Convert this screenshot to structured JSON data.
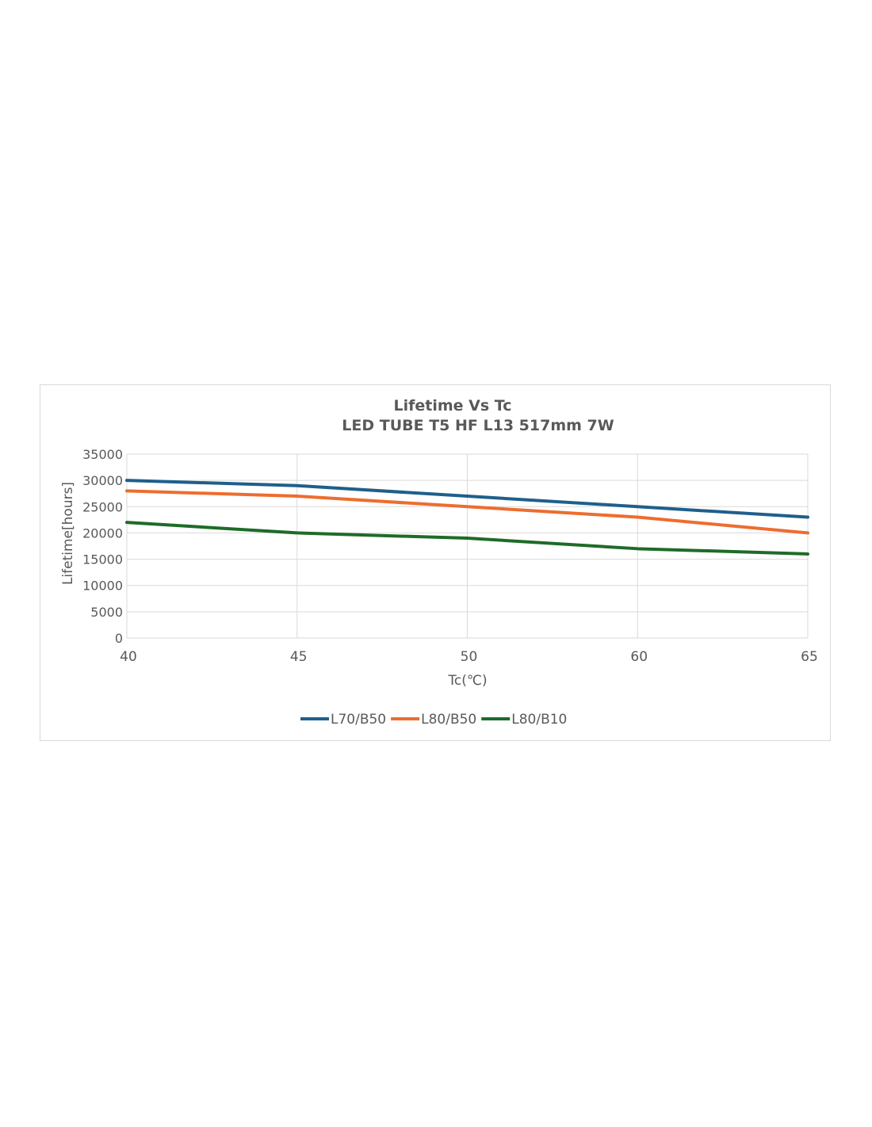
{
  "chart_data": {
    "type": "line",
    "title": "Lifetime Vs Tc",
    "subtitle": "LED TUBE T5 HF L13  517mm 7W",
    "xlabel": "Tc(℃)",
    "ylabel": "Lifetime[hours]",
    "categories": [
      "40",
      "45",
      "50",
      "60",
      "65"
    ],
    "ylim": [
      0,
      35000
    ],
    "yticks": [
      0,
      5000,
      10000,
      15000,
      20000,
      25000,
      30000,
      35000
    ],
    "grid": true,
    "legend_position": "bottom",
    "series": [
      {
        "name": "L70/B50",
        "color": "#1f5f8b",
        "values": [
          30000,
          29000,
          27000,
          25000,
          23000
        ]
      },
      {
        "name": "L80/B50",
        "color": "#ed6d2f",
        "values": [
          28000,
          27000,
          25000,
          23000,
          20000
        ]
      },
      {
        "name": "L80/B10",
        "color": "#1e6b28",
        "values": [
          22000,
          20000,
          19000,
          17000,
          16000
        ]
      }
    ]
  }
}
